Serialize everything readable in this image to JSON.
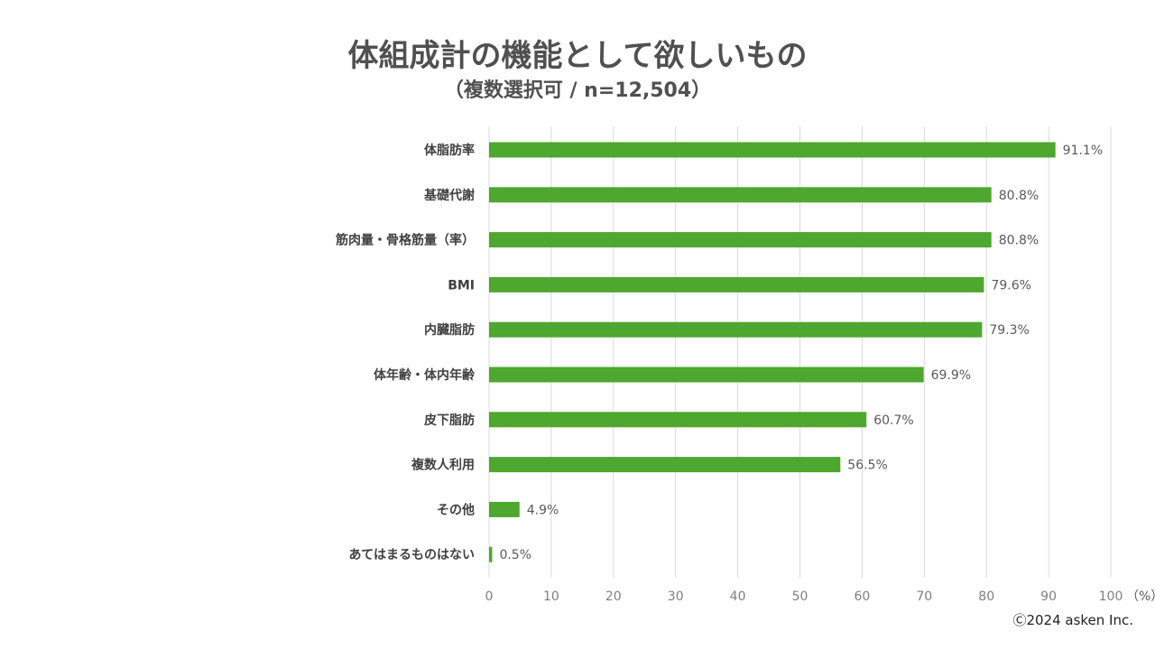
{
  "header": {
    "title": "体組成計の機能として欲しいもの",
    "subtitle": "（複数選択可 / n=12,504）"
  },
  "chart_data": {
    "type": "bar",
    "orientation": "horizontal",
    "categories": [
      "体脂肪率",
      "基礎代謝",
      "筋肉量・骨格筋量（率）",
      "BMI",
      "内臓脂肪",
      "体年齢・体内年齢",
      "皮下脂肪",
      "複数人利用",
      "その他",
      "あてはまるものはない"
    ],
    "values": [
      91.1,
      80.8,
      80.8,
      79.6,
      79.3,
      69.9,
      60.7,
      56.5,
      4.9,
      0.5
    ],
    "value_suffix": "%",
    "xlim": [
      0,
      100
    ],
    "xticks": [
      0,
      10,
      20,
      30,
      40,
      50,
      60,
      70,
      80,
      90,
      100
    ],
    "x_unit": "（%）",
    "grid": true,
    "bar_color": "#4ea72e"
  },
  "footer": {
    "copyright": "Ⓒ2024 asken Inc."
  }
}
